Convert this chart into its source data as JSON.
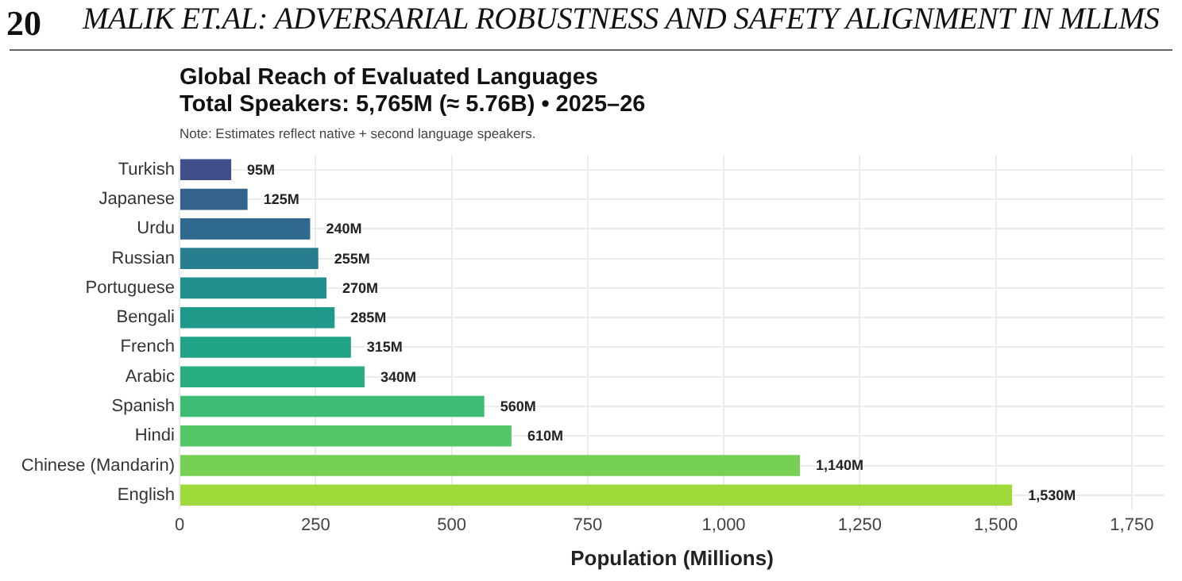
{
  "chart_data": {
    "type": "bar",
    "orientation": "horizontal",
    "title": "Global Reach of Evaluated Languages",
    "subtitle": "Total Speakers: 5,765M (≈ 5.76B) • 2025–26",
    "annotations": [
      "20",
      "MALIK ET.AL: ADVERSARIAL ROBUSTNESS AND SAFETY ALIGNMENT IN MLLMS",
      "Note: Estimates reflect native + second language speakers."
    ],
    "xlabel": "Population (Millions)",
    "categories": [
      "Turkish",
      "Japanese",
      "Urdu",
      "Russian",
      "Portuguese",
      "Bengali",
      "French",
      "Arabic",
      "Spanish",
      "Hindi",
      "Chinese (Mandarin)",
      "English"
    ],
    "values": [
      95,
      125,
      240,
      255,
      270,
      285,
      315,
      340,
      560,
      610,
      1140,
      1530
    ],
    "value_labels": [
      "95M",
      "125M",
      "240M",
      "255M",
      "270M",
      "285M",
      "315M",
      "340M",
      "560M",
      "610M",
      "1,140M",
      "1,530M"
    ],
    "colors": [
      "#3e4f8a",
      "#33638d",
      "#2f6a8e",
      "#287d8e",
      "#21908c",
      "#1f9a8a",
      "#20a386",
      "#29af7f",
      "#3dbc74",
      "#55c667",
      "#75d054",
      "#9fda3a"
    ],
    "xlim": [
      0,
      1810
    ],
    "xticks": [
      {
        "value": 0,
        "label": "0"
      },
      {
        "value": 250,
        "label": "250"
      },
      {
        "value": 500,
        "label": "500"
      },
      {
        "value": 750,
        "label": "750"
      },
      {
        "value": 1000,
        "label": "1,000"
      },
      {
        "value": 1250,
        "label": "1,250"
      },
      {
        "value": 1500,
        "label": "1,500"
      },
      {
        "value": 1750,
        "label": "1,750"
      }
    ],
    "grid": true,
    "legend": false
  }
}
